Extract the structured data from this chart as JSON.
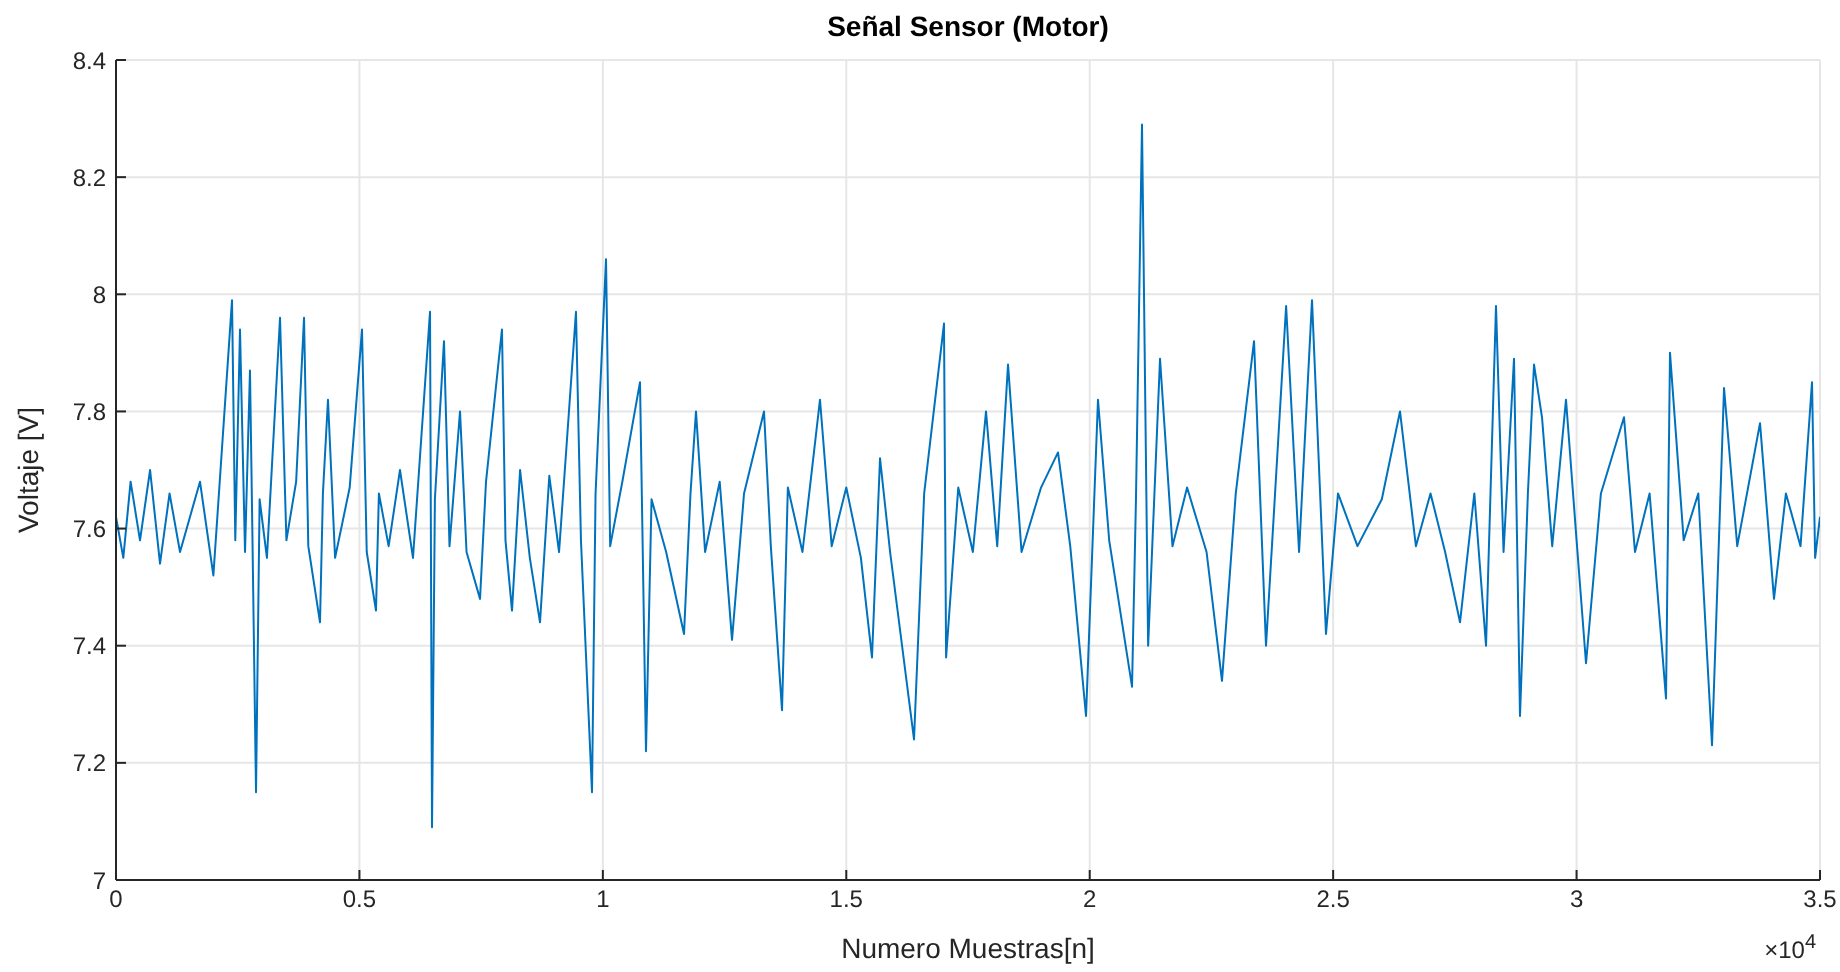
{
  "chart_data": {
    "type": "line",
    "title": "Señal Sensor (Motor)",
    "xlabel": "Numero Muestras[n]",
    "ylabel": "Voltaje [V]",
    "color": "#0072bd",
    "grid": true,
    "xlim": [
      0,
      3.5
    ],
    "xticks": [
      0,
      0.5,
      1,
      1.5,
      2,
      2.5,
      3,
      3.5
    ],
    "ylim": [
      7,
      8.4
    ],
    "yticks": [
      7,
      7.2,
      7.4,
      7.6,
      7.8,
      8,
      8.2,
      8.4
    ],
    "annotations": [
      "×10$^{4}$"
    ],
    "x": [
      0,
      0.015,
      0.03,
      0.0493,
      0.07,
      0.0904,
      0.11,
      0.1315,
      0.1725,
      0.2,
      0.2383,
      0.245,
      0.2547,
      0.265,
      0.2752,
      0.28,
      0.2876,
      0.295,
      0.31,
      0.3369,
      0.35,
      0.37,
      0.3862,
      0.395,
      0.419,
      0.425,
      0.4354,
      0.45,
      0.48,
      0.5053,
      0.515,
      0.534,
      0.54,
      0.56,
      0.5833,
      0.61,
      0.645,
      0.6491,
      0.655,
      0.6737,
      0.685,
      0.7066,
      0.72,
      0.7477,
      0.76,
      0.7928,
      0.8,
      0.8134,
      0.83,
      0.85,
      0.8709,
      0.89,
      0.91,
      0.9448,
      0.955,
      0.9777,
      0.985,
      1.0065,
      1.015,
      1.04,
      1.0763,
      1.0886,
      1.1,
      1.13,
      1.1667,
      1.18,
      1.1913,
      1.21,
      1.24,
      1.2653,
      1.29,
      1.331,
      1.345,
      1.368,
      1.38,
      1.41,
      1.446,
      1.47,
      1.5,
      1.53,
      1.5528,
      1.5693,
      1.59,
      1.6391,
      1.66,
      1.7007,
      1.705,
      1.73,
      1.76,
      1.787,
      1.81,
      1.8322,
      1.86,
      1.9,
      1.9349,
      1.96,
      1.9924,
      2.017,
      2.04,
      2.0869,
      2.095,
      2.1074,
      2.12,
      2.1444,
      2.17,
      2.2,
      2.24,
      2.2717,
      2.3,
      2.3375,
      2.3621,
      2.38,
      2.4034,
      2.43,
      2.4566,
      2.4853,
      2.51,
      2.55,
      2.6,
      2.6373,
      2.67,
      2.7,
      2.73,
      2.7606,
      2.79,
      2.814,
      2.8345,
      2.85,
      2.8715,
      2.8838,
      2.9,
      2.9126,
      2.929,
      2.95,
      2.9783,
      3,
      3.0194,
      3.05,
      3.0974,
      3.12,
      3.15,
      3.1837,
      3.1919,
      3.22,
      3.25,
      3.2782,
      3.3029,
      3.33,
      3.3768,
      3.4055,
      3.43,
      3.46,
      3.4836,
      3.49,
      3.5
    ],
    "values": [
      7.62,
      7.55,
      7.68,
      7.58,
      7.7,
      7.54,
      7.66,
      7.56,
      7.68,
      7.52,
      7.99,
      7.58,
      7.94,
      7.56,
      7.87,
      7.6,
      7.15,
      7.65,
      7.55,
      7.96,
      7.58,
      7.68,
      7.96,
      7.57,
      7.44,
      7.66,
      7.82,
      7.55,
      7.67,
      7.94,
      7.56,
      7.46,
      7.66,
      7.57,
      7.7,
      7.55,
      7.97,
      7.09,
      7.65,
      7.92,
      7.57,
      7.8,
      7.56,
      7.48,
      7.68,
      7.94,
      7.58,
      7.46,
      7.7,
      7.55,
      7.44,
      7.69,
      7.56,
      7.97,
      7.58,
      7.15,
      7.66,
      8.06,
      7.57,
      7.68,
      7.85,
      7.22,
      7.65,
      7.56,
      7.42,
      7.66,
      7.8,
      7.56,
      7.68,
      7.41,
      7.66,
      7.8,
      7.57,
      7.29,
      7.67,
      7.56,
      7.82,
      7.57,
      7.67,
      7.55,
      7.38,
      7.72,
      7.56,
      7.24,
      7.66,
      7.95,
      7.38,
      7.67,
      7.56,
      7.8,
      7.57,
      7.88,
      7.56,
      7.67,
      7.73,
      7.57,
      7.28,
      7.82,
      7.58,
      7.33,
      7.65,
      8.29,
      7.4,
      7.89,
      7.57,
      7.67,
      7.56,
      7.34,
      7.66,
      7.92,
      7.4,
      7.65,
      7.98,
      7.56,
      7.99,
      7.42,
      7.66,
      7.57,
      7.65,
      7.8,
      7.57,
      7.66,
      7.56,
      7.44,
      7.66,
      7.4,
      7.98,
      7.56,
      7.89,
      7.28,
      7.66,
      7.88,
      7.79,
      7.57,
      7.82,
      7.58,
      7.37,
      7.66,
      7.79,
      7.56,
      7.66,
      7.31,
      7.9,
      7.58,
      7.66,
      7.23,
      7.84,
      7.57,
      7.78,
      7.48,
      7.66,
      7.57,
      7.85,
      7.55,
      7.62
    ]
  }
}
